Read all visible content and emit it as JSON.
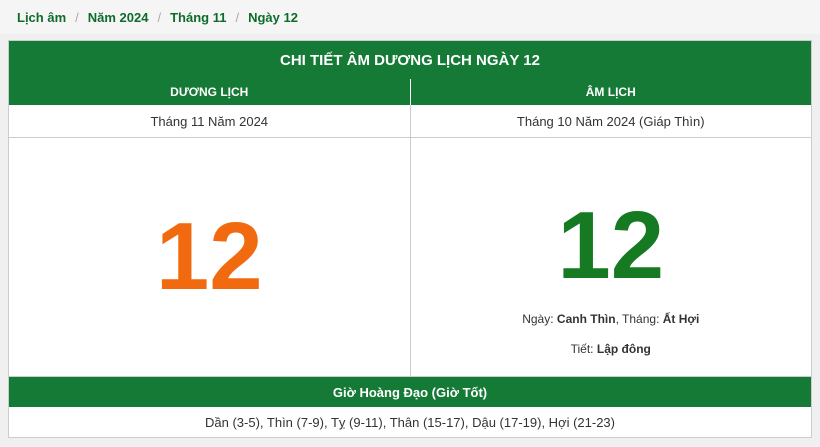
{
  "breadcrumb": {
    "items": [
      "Lịch âm",
      "Năm 2024",
      "Tháng 11",
      "Ngày 12"
    ],
    "separator": "/"
  },
  "table": {
    "title": "CHI TIẾT ÂM DƯƠNG LỊCH NGÀY 12",
    "solar": {
      "heading": "DƯƠNG LỊCH",
      "month_year": "Tháng 11 Năm 2024",
      "day": 12
    },
    "lunar": {
      "heading": "ÂM LỊCH",
      "month_year": "Tháng 10 Năm 2024 (Giáp Thìn)",
      "day": 12,
      "day_label": "Ngày:",
      "day_value": "Canh Thìn",
      "month_label": ", Tháng:",
      "month_value": "Ất Hợi",
      "term_label": "Tiết:",
      "term_value": "Lập đông"
    },
    "good_hours": {
      "heading": "Giờ Hoàng Đạo (Giờ Tốt)",
      "text": "Dần (3-5), Thìn (7-9), Tỵ (9-11), Thân (15-17), Dậu (17-19), Hợi (21-23)"
    }
  }
}
